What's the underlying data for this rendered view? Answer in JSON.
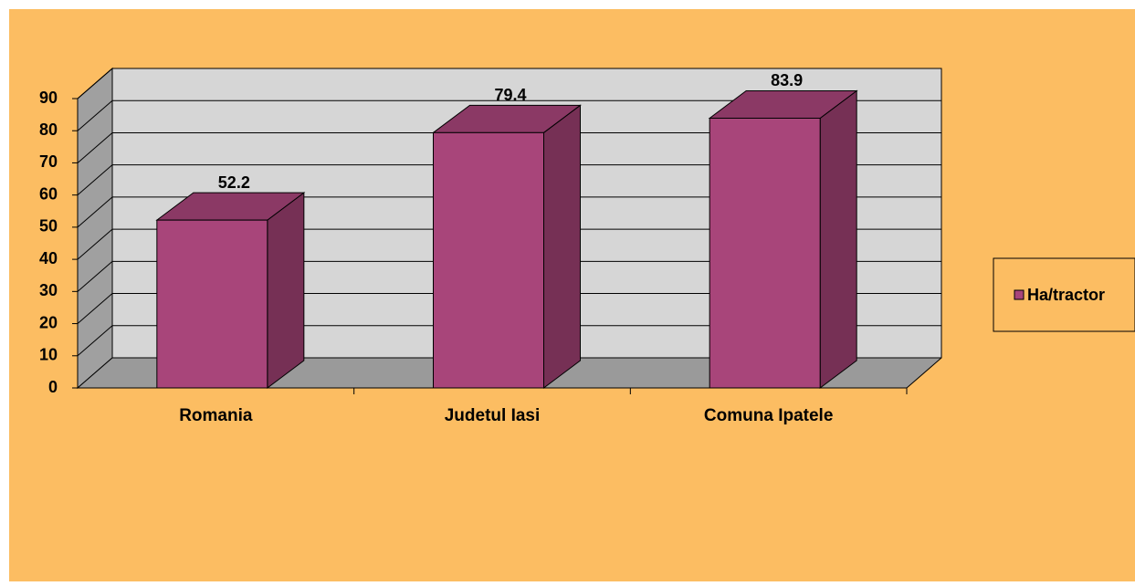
{
  "chart_data": {
    "type": "bar",
    "categories": [
      "Romania",
      "Judetul Iasi",
      "Comuna Ipatele"
    ],
    "series": [
      {
        "name": "Ha/tractor",
        "color": "#a8457a",
        "values": [
          52.2,
          79.4,
          83.9
        ]
      }
    ],
    "ylim": [
      0,
      90
    ],
    "yticks": [
      0,
      10,
      20,
      30,
      40,
      50,
      60,
      70,
      80,
      90
    ],
    "grid": true,
    "legend": "right"
  }
}
